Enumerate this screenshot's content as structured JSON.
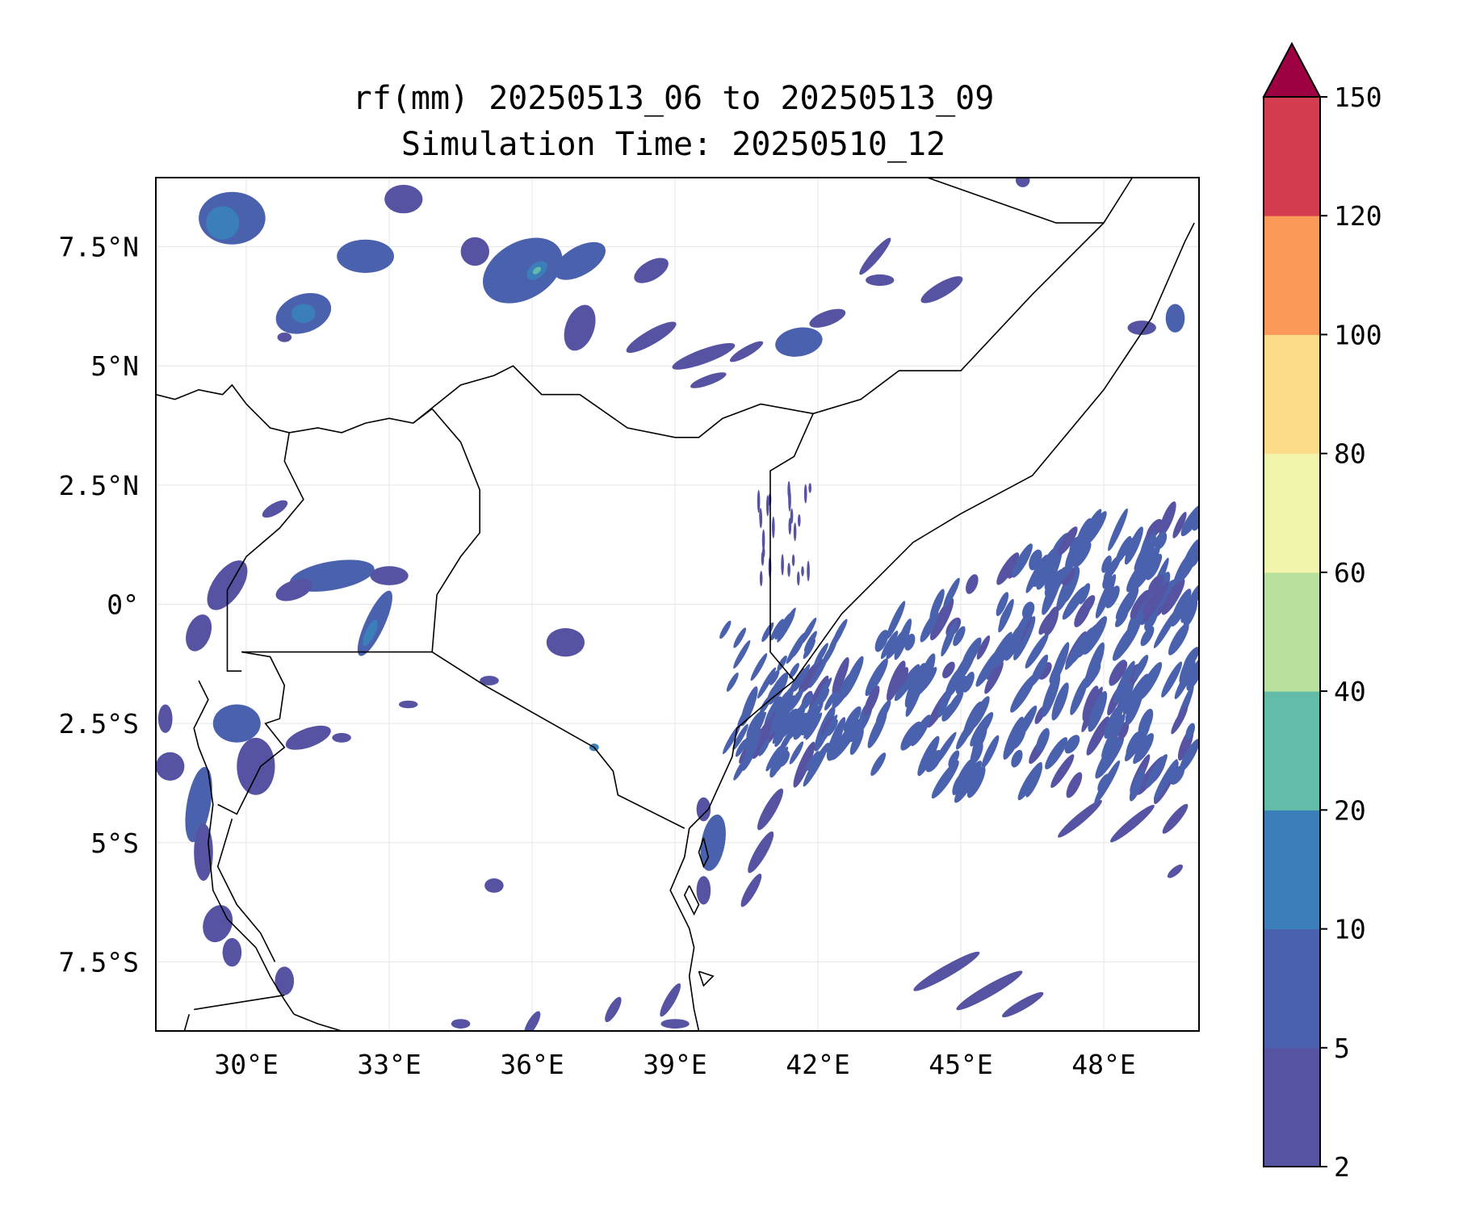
{
  "title": {
    "line1": "rf(mm) 20250513_06 to 20250513_09",
    "line2": "Simulation Time: 20250510_12"
  },
  "map": {
    "lon_range": [
      28.1,
      50.0
    ],
    "lat_range": [
      -8.95,
      8.95
    ],
    "lon_ticks": [
      {
        "value": 30,
        "label": "30°E"
      },
      {
        "value": 33,
        "label": "33°E"
      },
      {
        "value": 36,
        "label": "36°E"
      },
      {
        "value": 39,
        "label": "39°E"
      },
      {
        "value": 42,
        "label": "42°E"
      },
      {
        "value": 45,
        "label": "45°E"
      },
      {
        "value": 48,
        "label": "48°E"
      }
    ],
    "lat_ticks": [
      {
        "value": 7.5,
        "label": "7.5°N"
      },
      {
        "value": 5,
        "label": "5°N"
      },
      {
        "value": 2.5,
        "label": "2.5°N"
      },
      {
        "value": 0,
        "label": "0°"
      },
      {
        "value": -2.5,
        "label": "2.5°S"
      },
      {
        "value": -5,
        "label": "5°S"
      },
      {
        "value": -7.5,
        "label": "7.5°S"
      }
    ],
    "gridlines": true
  },
  "colorbar": {
    "levels": [
      2,
      5,
      10,
      20,
      40,
      60,
      80,
      100,
      120,
      150
    ],
    "labels": [
      "2",
      "5",
      "10",
      "20",
      "40",
      "60",
      "80",
      "100",
      "120",
      "150"
    ],
    "colors": [
      "#5753a3",
      "#4a61ad",
      "#3a7fba",
      "#62bca7",
      "#b9e09d",
      "#f2f6ad",
      "#fcdc88",
      "#f99a59",
      "#d43d4f"
    ],
    "extend_color": "#9e0142",
    "extend": "max"
  },
  "colors": {
    "low_rain": "#5753a3",
    "mid_rain": "#4a61ad",
    "heavy_rain": "#3a7fba",
    "peak_rain": "#62bca7",
    "border": "#000000",
    "grid": "#e6e6e6"
  }
}
